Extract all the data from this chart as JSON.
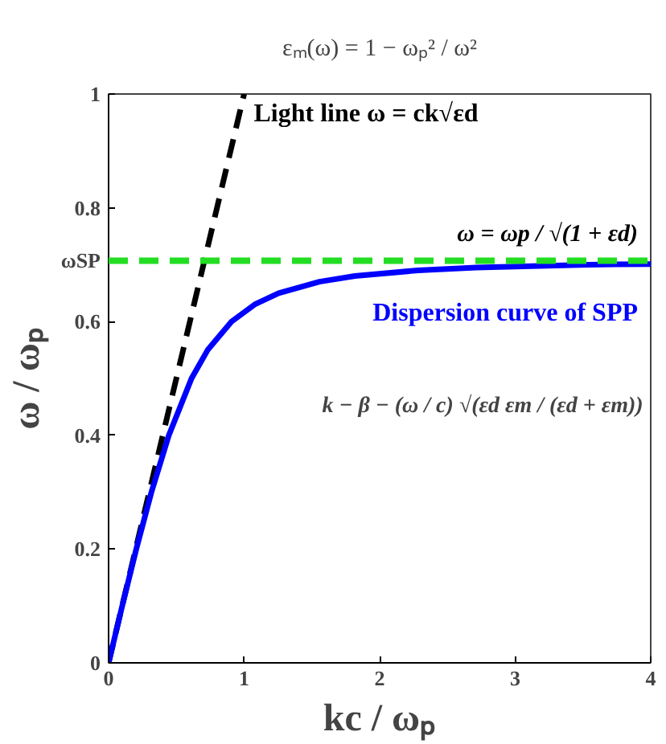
{
  "chart_data": {
    "type": "line",
    "title": "εₘ(ω) = 1 − ωₚ² / ω²",
    "xlabel": "kc / ωₚ",
    "ylabel": "ω / ωₚ",
    "xlim": [
      0,
      4
    ],
    "ylim": [
      0,
      1
    ],
    "xticks": [
      0,
      1,
      2,
      3,
      4
    ],
    "yticks": [
      0,
      0.2,
      0.4,
      {
        "value": 0.6,
        "label": "0.6"
      },
      {
        "value": 0.707,
        "label": "ωSP"
      },
      0.8,
      1
    ],
    "grid": false,
    "series": [
      {
        "name": "Light line ω = ck√εd",
        "color": "#000000",
        "line_style": "dashed",
        "x": [
          0,
          1
        ],
        "values": [
          0,
          1
        ]
      },
      {
        "name": "Dispersion curve of SPP",
        "color": "#0000ff",
        "line_style": "solid",
        "x": [
          0,
          0.1005,
          0.2043,
          0.316,
          0.4446,
          0.612,
          0.731,
          0.907,
          1.078,
          1.255,
          1.556,
          1.818,
          2.284,
          2.712,
          3.535,
          4
        ],
        "values": [
          0,
          0.1,
          0.2,
          0.3,
          0.4,
          0.5,
          0.55,
          0.6,
          0.63,
          0.65,
          0.67,
          0.68,
          0.69,
          0.695,
          0.7,
          0.701
        ]
      }
    ],
    "ref_lines": [
      {
        "axis": "y",
        "value": 0.707,
        "label": "ω = ωp / √(1 + εd)",
        "color": "#22dd22",
        "line_style": "dashed"
      }
    ],
    "annotations": [
      "k − β − (ω / c) √(εd εm / (εd + εm))"
    ]
  }
}
